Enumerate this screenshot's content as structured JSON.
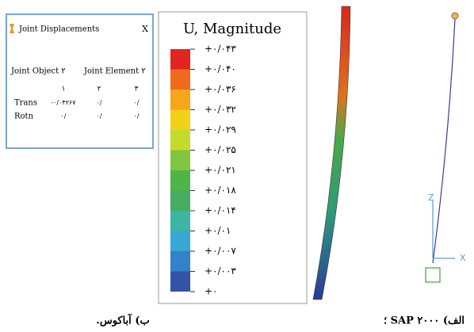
{
  "dialog": {
    "title": "Joint Displacements",
    "close": "X",
    "headers": [
      "Joint Object ۲",
      "Joint Element ۲"
    ],
    "columns": [
      "۱",
      "۲",
      "۳"
    ],
    "rows": [
      {
        "label": "Trans",
        "cells": [
          "-۰/۰۴۲۶۷",
          "۰/",
          "۰/"
        ]
      },
      {
        "label": "Rotn",
        "cells": [
          "۰/",
          "۰/",
          "۰/"
        ]
      }
    ]
  },
  "legend": {
    "title": "U, Magnitude",
    "labels": [
      "+۰/۰۴۳",
      "+۰/۰۴۰",
      "+۰/۰۳۶",
      "+۰/۰۳۲",
      "+۰/۰۲۹",
      "+۰/۰۲۵",
      "+۰/۰۲۱",
      "+۰/۰۱۸",
      "+۰/۰۱۴",
      "+۰/۰۱",
      "+۰/۰۰۷",
      "+۰/۰۰۳",
      "+۰"
    ],
    "colors": [
      "#e3241f",
      "#f26a1e",
      "#f7a51b",
      "#f3d116",
      "#c6da2c",
      "#82c540",
      "#4fb548",
      "#45ad62",
      "#3db4a4",
      "#38a9d4",
      "#3182cb",
      "#3553a6"
    ]
  },
  "axes": {
    "z": "Z",
    "x": "X"
  },
  "captions": {
    "abaqus": "ب) آباکوس.",
    "sap": "الف) SAP ۲۰۰۰ ؛"
  }
}
